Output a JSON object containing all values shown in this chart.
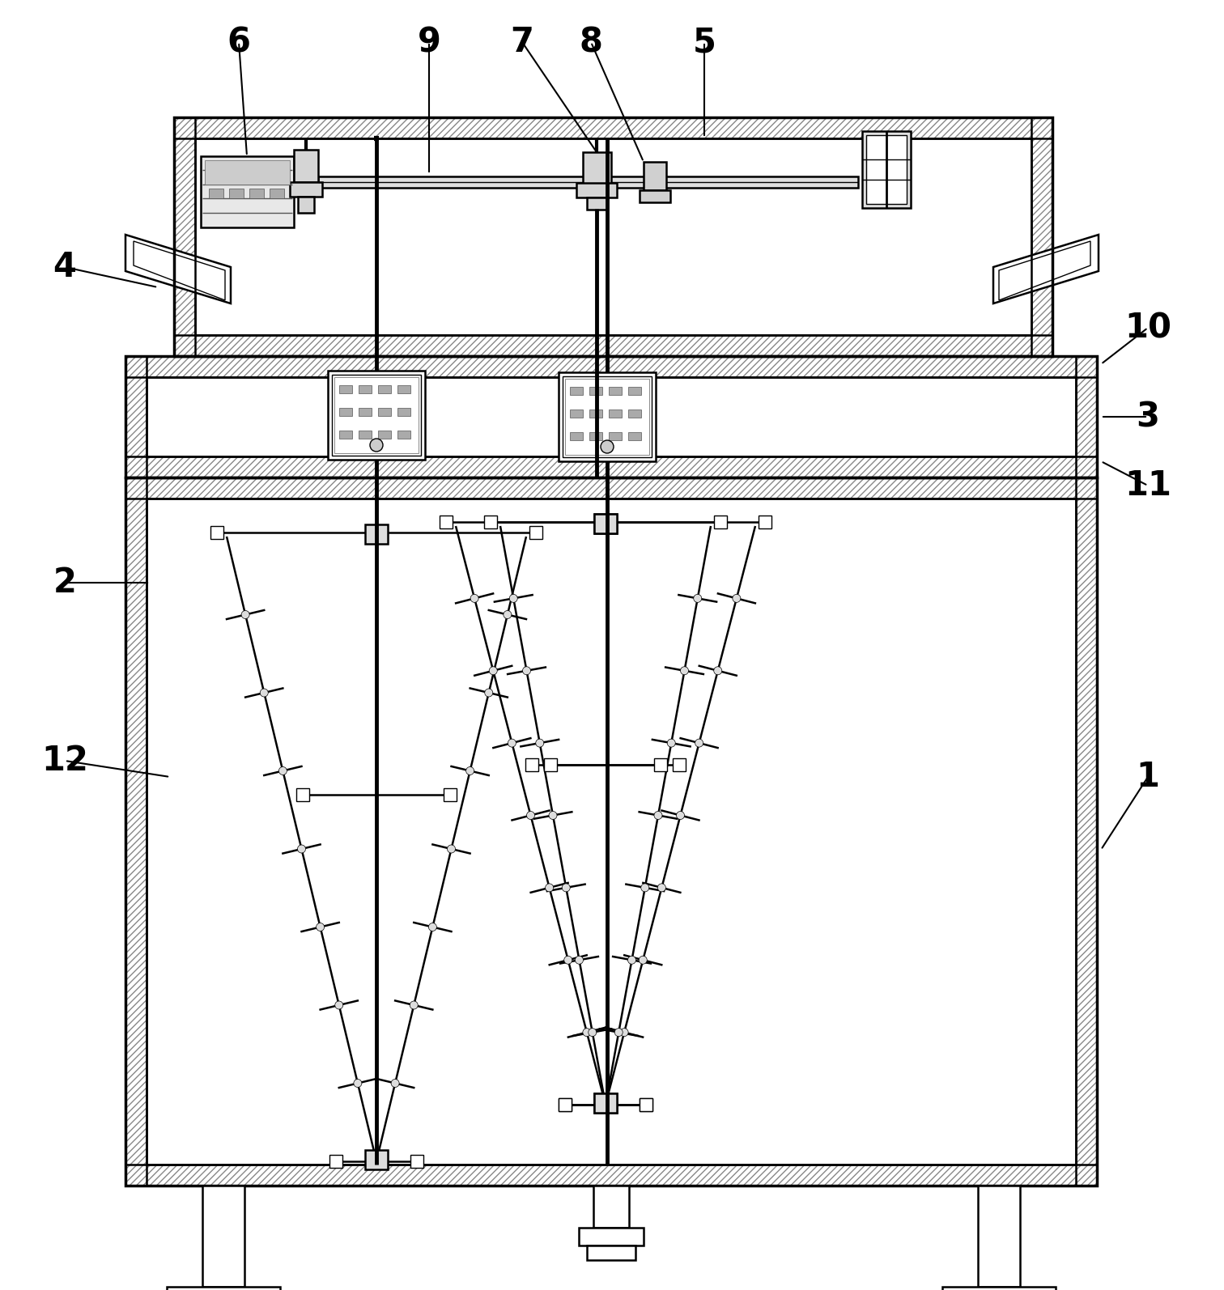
{
  "bg_color": "#ffffff",
  "lw_main": 1.8,
  "lw_thick": 2.5,
  "lw_thin": 1.0,
  "fig_width": 15.12,
  "fig_height": 15.94
}
